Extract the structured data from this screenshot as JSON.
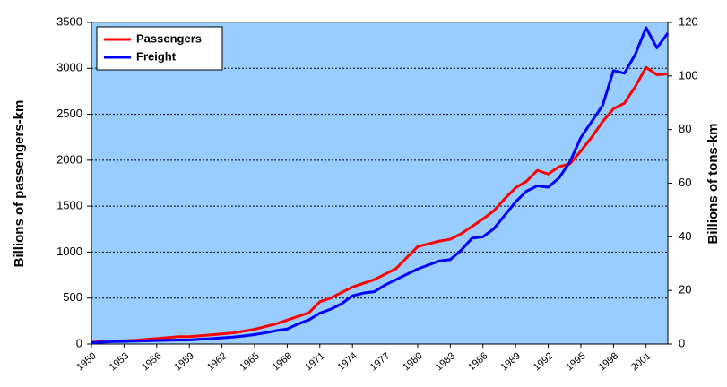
{
  "chart_data": {
    "type": "line",
    "x": [
      1950,
      1951,
      1952,
      1953,
      1954,
      1955,
      1956,
      1957,
      1958,
      1959,
      1960,
      1961,
      1962,
      1963,
      1964,
      1965,
      1966,
      1967,
      1968,
      1969,
      1970,
      1971,
      1972,
      1973,
      1974,
      1975,
      1976,
      1977,
      1978,
      1979,
      1980,
      1981,
      1982,
      1983,
      1984,
      1985,
      1986,
      1987,
      1988,
      1989,
      1990,
      1991,
      1992,
      1993,
      1994,
      1995,
      1996,
      1997,
      1998,
      1999,
      2000,
      2001,
      2002,
      2003
    ],
    "series": [
      {
        "name": "Passengers",
        "color": "#ff0000",
        "values": [
          20,
          25,
          30,
          35,
          40,
          50,
          60,
          70,
          80,
          80,
          90,
          100,
          110,
          120,
          140,
          160,
          190,
          220,
          260,
          300,
          340,
          460,
          500,
          560,
          620,
          660,
          700,
          760,
          820,
          940,
          1060,
          1090,
          1120,
          1140,
          1200,
          1280,
          1360,
          1450,
          1580,
          1700,
          1770,
          1890,
          1850,
          1930,
          1960,
          2100,
          2250,
          2420,
          2560,
          2620,
          2800,
          3010,
          2930,
          2940
        ]
      },
      {
        "name": "Freight",
        "color": "#0000ff",
        "axis": "y2",
        "values": [
          0.5,
          0.7,
          0.9,
          1,
          1.1,
          1.2,
          1.3,
          1.4,
          1.5,
          1.5,
          1.8,
          2,
          2.3,
          2.6,
          3,
          3.5,
          4.2,
          5,
          5.6,
          7.5,
          9,
          11.5,
          13,
          15,
          18,
          19,
          19.5,
          22,
          24,
          26,
          28,
          29.5,
          31,
          31.5,
          35,
          39.5,
          40,
          43,
          48,
          53,
          57,
          59,
          58.5,
          62,
          68,
          77,
          83,
          89,
          102,
          101,
          108,
          118,
          110.5,
          116
        ]
      }
    ],
    "ylabel": "Billions of passengers-km",
    "y2label": "Billions of tons-km",
    "xlim": [
      1950,
      2003
    ],
    "xticks": [
      1950,
      1953,
      1956,
      1959,
      1962,
      1965,
      1968,
      1971,
      1974,
      1977,
      1980,
      1983,
      1986,
      1989,
      1992,
      1995,
      1998,
      2001
    ],
    "ylim": [
      0,
      3500
    ],
    "yticks": [
      0,
      500,
      1000,
      1500,
      2000,
      2500,
      3000,
      3500
    ],
    "y2lim": [
      0,
      120
    ],
    "y2ticks": [
      0,
      20,
      40,
      60,
      80,
      100,
      120
    ],
    "grid": true,
    "legend": "upper-left",
    "background": "#99ccff"
  }
}
